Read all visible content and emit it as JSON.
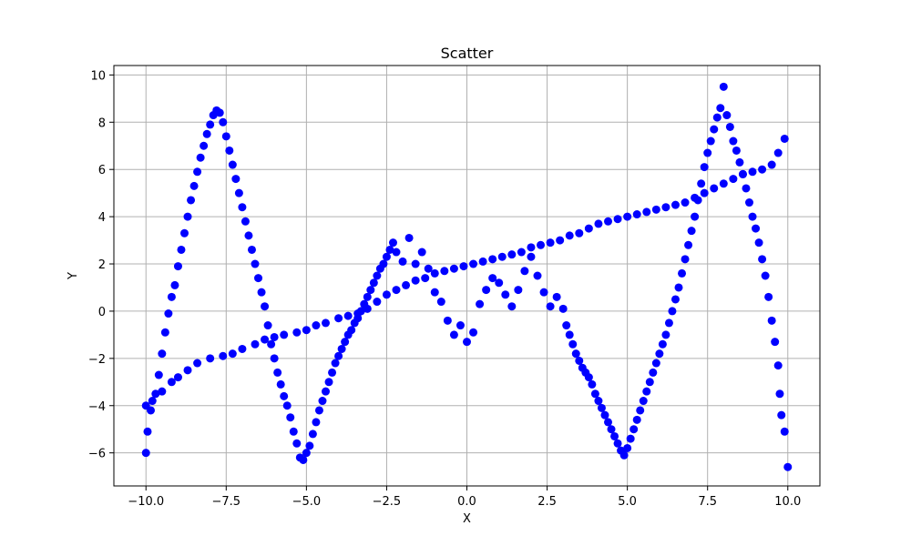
{
  "chart_data": {
    "type": "scatter",
    "title": "Scatter",
    "xlabel": "X",
    "ylabel": "Y",
    "xlim": [
      -11,
      11
    ],
    "ylim": [
      -7.4,
      10.4
    ],
    "xticks": [
      -10.0,
      -7.5,
      -5.0,
      -2.5,
      0.0,
      2.5,
      5.0,
      7.5,
      10.0
    ],
    "xtick_labels": [
      "−10.0",
      "−7.5",
      "−5.0",
      "−2.5",
      "0.0",
      "2.5",
      "5.0",
      "7.5",
      "10.0"
    ],
    "yticks": [
      -6,
      -4,
      -2,
      0,
      2,
      4,
      6,
      8,
      10
    ],
    "ytick_labels": [
      "−6",
      "−4",
      "−2",
      "0",
      "2",
      "4",
      "6",
      "8",
      "10"
    ],
    "grid": true,
    "marker_color": "#0000ff",
    "series": [
      {
        "points": [
          [
            -10.0,
            -4.0
          ],
          [
            -9.8,
            -3.8
          ],
          [
            -9.5,
            -3.4
          ],
          [
            -9.2,
            -3.0
          ],
          [
            -9.0,
            -2.8
          ],
          [
            -8.7,
            -2.5
          ],
          [
            -8.4,
            -2.2
          ],
          [
            -8.0,
            -2.0
          ],
          [
            -7.6,
            -1.9
          ],
          [
            -7.3,
            -1.8
          ],
          [
            -7.0,
            -1.6
          ],
          [
            -6.6,
            -1.4
          ],
          [
            -6.3,
            -1.2
          ],
          [
            -6.0,
            -1.1
          ],
          [
            -5.7,
            -1.0
          ],
          [
            -5.3,
            -0.9
          ],
          [
            -5.0,
            -0.8
          ],
          [
            -4.7,
            -0.6
          ],
          [
            -4.4,
            -0.5
          ],
          [
            -4.0,
            -0.3
          ],
          [
            -3.7,
            -0.2
          ],
          [
            -3.4,
            -0.1
          ],
          [
            -3.1,
            0.1
          ],
          [
            -2.8,
            0.4
          ],
          [
            -2.5,
            0.7
          ],
          [
            -2.2,
            0.9
          ],
          [
            -1.9,
            1.1
          ],
          [
            -1.6,
            1.3
          ],
          [
            -1.3,
            1.4
          ],
          [
            -1.0,
            1.6
          ],
          [
            -0.7,
            1.7
          ],
          [
            -0.4,
            1.8
          ],
          [
            -0.1,
            1.9
          ],
          [
            0.2,
            2.0
          ],
          [
            0.5,
            2.1
          ],
          [
            0.8,
            2.2
          ],
          [
            1.1,
            2.3
          ],
          [
            1.4,
            2.4
          ],
          [
            1.7,
            2.5
          ],
          [
            2.0,
            2.7
          ],
          [
            2.3,
            2.8
          ],
          [
            2.6,
            2.9
          ],
          [
            2.9,
            3.0
          ],
          [
            3.2,
            3.2
          ],
          [
            3.5,
            3.3
          ],
          [
            3.8,
            3.5
          ],
          [
            4.1,
            3.7
          ],
          [
            4.4,
            3.8
          ],
          [
            4.7,
            3.9
          ],
          [
            5.0,
            4.0
          ],
          [
            5.3,
            4.1
          ],
          [
            5.6,
            4.2
          ],
          [
            5.9,
            4.3
          ],
          [
            6.2,
            4.4
          ],
          [
            6.5,
            4.5
          ],
          [
            6.8,
            4.6
          ],
          [
            7.1,
            4.8
          ],
          [
            7.4,
            5.0
          ],
          [
            7.7,
            5.2
          ],
          [
            8.0,
            5.4
          ],
          [
            8.3,
            5.6
          ],
          [
            8.6,
            5.8
          ],
          [
            8.9,
            5.9
          ],
          [
            9.2,
            6.0
          ],
          [
            9.5,
            6.2
          ],
          [
            9.7,
            6.7
          ],
          [
            9.9,
            7.3
          ],
          [
            -10.0,
            -6.0
          ],
          [
            -9.95,
            -5.1
          ],
          [
            -9.85,
            -4.2
          ],
          [
            -9.7,
            -3.5
          ],
          [
            -9.6,
            -2.7
          ],
          [
            -9.5,
            -1.8
          ],
          [
            -9.4,
            -0.9
          ],
          [
            -9.3,
            -0.1
          ],
          [
            -9.2,
            0.6
          ],
          [
            -9.1,
            1.1
          ],
          [
            -9.0,
            1.9
          ],
          [
            -8.9,
            2.6
          ],
          [
            -8.8,
            3.3
          ],
          [
            -8.7,
            4.0
          ],
          [
            -8.6,
            4.7
          ],
          [
            -8.5,
            5.3
          ],
          [
            -8.4,
            5.9
          ],
          [
            -8.3,
            6.5
          ],
          [
            -8.2,
            7.0
          ],
          [
            -8.1,
            7.5
          ],
          [
            -8.0,
            7.9
          ],
          [
            -7.9,
            8.3
          ],
          [
            -7.8,
            8.5
          ],
          [
            -7.7,
            8.4
          ],
          [
            -7.6,
            8.0
          ],
          [
            -7.5,
            7.4
          ],
          [
            -7.4,
            6.8
          ],
          [
            -7.3,
            6.2
          ],
          [
            -7.2,
            5.6
          ],
          [
            -7.1,
            5.0
          ],
          [
            -7.0,
            4.4
          ],
          [
            -6.9,
            3.8
          ],
          [
            -6.8,
            3.2
          ],
          [
            -6.7,
            2.6
          ],
          [
            -6.6,
            2.0
          ],
          [
            -6.5,
            1.4
          ],
          [
            -6.4,
            0.8
          ],
          [
            -6.3,
            0.2
          ],
          [
            -6.2,
            -0.6
          ],
          [
            -6.1,
            -1.4
          ],
          [
            -6.0,
            -2.0
          ],
          [
            -5.9,
            -2.6
          ],
          [
            -5.8,
            -3.1
          ],
          [
            -5.7,
            -3.6
          ],
          [
            -5.6,
            -4.0
          ],
          [
            -5.5,
            -4.5
          ],
          [
            -5.4,
            -5.1
          ],
          [
            -5.3,
            -5.6
          ],
          [
            -5.2,
            -6.2
          ],
          [
            -5.1,
            -6.3
          ],
          [
            -5.0,
            -6.0
          ],
          [
            -4.9,
            -5.7
          ],
          [
            -4.8,
            -5.2
          ],
          [
            -4.7,
            -4.7
          ],
          [
            -4.6,
            -4.2
          ],
          [
            -4.5,
            -3.8
          ],
          [
            -4.4,
            -3.4
          ],
          [
            -4.3,
            -3.0
          ],
          [
            -4.2,
            -2.6
          ],
          [
            -4.1,
            -2.2
          ],
          [
            -4.0,
            -1.9
          ],
          [
            -3.9,
            -1.6
          ],
          [
            -3.8,
            -1.3
          ],
          [
            -3.7,
            -1.0
          ],
          [
            -3.6,
            -0.8
          ],
          [
            -3.5,
            -0.5
          ],
          [
            -3.4,
            -0.3
          ],
          [
            -3.3,
            0.0
          ],
          [
            -3.2,
            0.3
          ],
          [
            -3.1,
            0.6
          ],
          [
            -3.0,
            0.9
          ],
          [
            -2.9,
            1.2
          ],
          [
            -2.8,
            1.5
          ],
          [
            -2.7,
            1.8
          ],
          [
            -2.6,
            2.0
          ],
          [
            -2.5,
            2.3
          ],
          [
            -2.4,
            2.6
          ],
          [
            -2.3,
            2.9
          ],
          [
            -2.2,
            2.5
          ],
          [
            -2.0,
            2.1
          ],
          [
            -1.8,
            3.1
          ],
          [
            -1.6,
            2.0
          ],
          [
            -1.4,
            2.5
          ],
          [
            -1.2,
            1.8
          ],
          [
            -1.0,
            0.8
          ],
          [
            -0.8,
            0.4
          ],
          [
            -0.6,
            -0.4
          ],
          [
            -0.4,
            -1.0
          ],
          [
            -0.2,
            -0.6
          ],
          [
            0.0,
            -1.3
          ],
          [
            0.2,
            -0.9
          ],
          [
            0.4,
            0.3
          ],
          [
            0.6,
            0.9
          ],
          [
            0.8,
            1.4
          ],
          [
            1.0,
            1.2
          ],
          [
            1.2,
            0.7
          ],
          [
            1.4,
            0.2
          ],
          [
            1.6,
            0.9
          ],
          [
            1.8,
            1.7
          ],
          [
            2.0,
            2.3
          ],
          [
            2.2,
            1.5
          ],
          [
            2.4,
            0.8
          ],
          [
            2.6,
            0.2
          ],
          [
            2.8,
            0.6
          ],
          [
            3.0,
            0.1
          ],
          [
            3.1,
            -0.6
          ],
          [
            3.2,
            -1.0
          ],
          [
            3.3,
            -1.4
          ],
          [
            3.4,
            -1.8
          ],
          [
            3.5,
            -2.1
          ],
          [
            3.6,
            -2.4
          ],
          [
            3.7,
            -2.6
          ],
          [
            3.8,
            -2.8
          ],
          [
            3.9,
            -3.1
          ],
          [
            4.0,
            -3.5
          ],
          [
            4.1,
            -3.8
          ],
          [
            4.2,
            -4.1
          ],
          [
            4.3,
            -4.4
          ],
          [
            4.4,
            -4.7
          ],
          [
            4.5,
            -5.0
          ],
          [
            4.6,
            -5.3
          ],
          [
            4.7,
            -5.6
          ],
          [
            4.8,
            -5.9
          ],
          [
            4.9,
            -6.1
          ],
          [
            5.0,
            -5.8
          ],
          [
            5.1,
            -5.4
          ],
          [
            5.2,
            -5.0
          ],
          [
            5.3,
            -4.6
          ],
          [
            5.4,
            -4.2
          ],
          [
            5.5,
            -3.8
          ],
          [
            5.6,
            -3.4
          ],
          [
            5.7,
            -3.0
          ],
          [
            5.8,
            -2.6
          ],
          [
            5.9,
            -2.2
          ],
          [
            6.0,
            -1.8
          ],
          [
            6.1,
            -1.4
          ],
          [
            6.2,
            -1.0
          ],
          [
            6.3,
            -0.5
          ],
          [
            6.4,
            0.0
          ],
          [
            6.5,
            0.5
          ],
          [
            6.6,
            1.0
          ],
          [
            6.7,
            1.6
          ],
          [
            6.8,
            2.2
          ],
          [
            6.9,
            2.8
          ],
          [
            7.0,
            3.4
          ],
          [
            7.1,
            4.0
          ],
          [
            7.2,
            4.7
          ],
          [
            7.3,
            5.4
          ],
          [
            7.4,
            6.1
          ],
          [
            7.5,
            6.7
          ],
          [
            7.6,
            7.2
          ],
          [
            7.7,
            7.7
          ],
          [
            7.8,
            8.2
          ],
          [
            7.9,
            8.6
          ],
          [
            8.0,
            9.5
          ],
          [
            8.1,
            8.3
          ],
          [
            8.2,
            7.8
          ],
          [
            8.3,
            7.2
          ],
          [
            8.4,
            6.8
          ],
          [
            8.5,
            6.3
          ],
          [
            8.6,
            5.8
          ],
          [
            8.7,
            5.2
          ],
          [
            8.8,
            4.6
          ],
          [
            8.9,
            4.0
          ],
          [
            9.0,
            3.5
          ],
          [
            9.1,
            2.9
          ],
          [
            9.2,
            2.2
          ],
          [
            9.3,
            1.5
          ],
          [
            9.4,
            0.6
          ],
          [
            9.5,
            -0.4
          ],
          [
            9.6,
            -1.3
          ],
          [
            9.7,
            -2.3
          ],
          [
            9.75,
            -3.5
          ],
          [
            9.8,
            -4.4
          ],
          [
            9.9,
            -5.1
          ],
          [
            10.0,
            -6.6
          ]
        ]
      }
    ]
  }
}
